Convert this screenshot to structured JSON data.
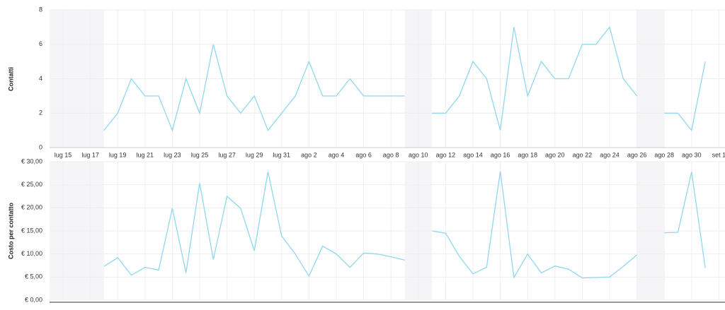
{
  "chart_data": [
    {
      "type": "line",
      "y_label": "Contatti",
      "categories": [
        "lug 15",
        null,
        "lug 17",
        null,
        "lug 19",
        null,
        "lug 21",
        null,
        "lug 23",
        null,
        "lug 25",
        null,
        "lug 27",
        null,
        "lug 29",
        null,
        "lug 31",
        null,
        "ago 2",
        null,
        "ago 4",
        null,
        "ago 6",
        null,
        "ago 8",
        null,
        "ago 10",
        null,
        "ago 12",
        null,
        "ago 14",
        null,
        "ago 16",
        null,
        "ago 18",
        null,
        "ago 20",
        null,
        "ago 22",
        null,
        "ago 24",
        null,
        "ago 26",
        null,
        "ago 28",
        null,
        "ago 30",
        null,
        "set 1"
      ],
      "series": [
        {
          "color": "#8fd8f0",
          "values": [
            null,
            null,
            null,
            1,
            2,
            4,
            3,
            3,
            1,
            4,
            2,
            6,
            3,
            2,
            3,
            1,
            2,
            3,
            5,
            3,
            3,
            4,
            3,
            3,
            3,
            3,
            null,
            2,
            2,
            3,
            5,
            4,
            1,
            7,
            3,
            5,
            4,
            4,
            6,
            6,
            7,
            4,
            3,
            null,
            2,
            2,
            1,
            5,
            null
          ]
        }
      ],
      "ylim": [
        0,
        8
      ],
      "yticks": [
        0,
        2,
        4,
        6,
        8
      ],
      "grid": true
    },
    {
      "type": "line",
      "y_label": "Costo per contatto",
      "series": [
        {
          "color": "#8fd8f0",
          "values": [
            null,
            null,
            null,
            7.3,
            9.2,
            5.4,
            7.1,
            6.5,
            19.9,
            5.9,
            25.4,
            8.8,
            22.5,
            19.9,
            10.7,
            27.8,
            13.9,
            10.0,
            5.2,
            11.7,
            10.0,
            7.1,
            10.2,
            10.0,
            9.4,
            8.7,
            null,
            15.0,
            14.5,
            9.5,
            5.7,
            7.1,
            27.9,
            4.9,
            10.0,
            5.9,
            7.4,
            6.7,
            4.8,
            4.9,
            5.0,
            7.3,
            9.8,
            null,
            14.6,
            14.7,
            27.8,
            7.0,
            null
          ]
        }
      ],
      "ylim": [
        0,
        30
      ],
      "yticks": [
        {
          "value": 0,
          "label": "€ 0,00"
        },
        {
          "value": 5,
          "label": "€ 5,00"
        },
        {
          "value": 10,
          "label": "€ 10,00"
        },
        {
          "value": 15,
          "label": "€ 15,00"
        },
        {
          "value": 20,
          "label": "€ 20,00"
        },
        {
          "value": 25,
          "label": "€ 25,00"
        },
        {
          "value": 30,
          "label": "€ 30,00"
        }
      ],
      "grid": true
    }
  ]
}
